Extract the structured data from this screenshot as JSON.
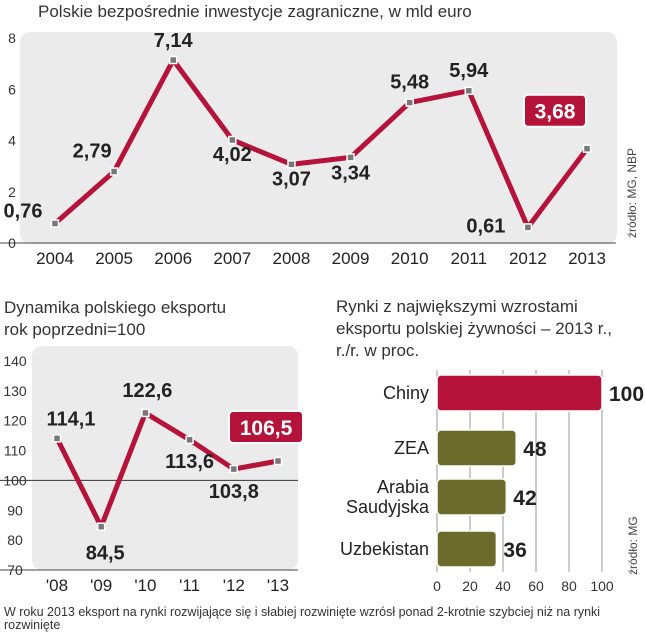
{
  "chart_data": [
    {
      "type": "line",
      "title": "Polskie bezpośrednie inwestycje zagraniczne, w mld euro",
      "source": "źródło: MG, NBP",
      "categories": [
        "2004",
        "2005",
        "2006",
        "2007",
        "2008",
        "2009",
        "2010",
        "2011",
        "2012",
        "2013"
      ],
      "values": [
        0.76,
        2.79,
        7.14,
        4.02,
        3.07,
        3.34,
        5.48,
        5.94,
        0.61,
        3.68
      ],
      "value_labels": [
        "0,76",
        "2,79",
        "7,14",
        "4,02",
        "3,07",
        "3,34",
        "5,48",
        "5,94",
        "0,61",
        "3,68"
      ],
      "highlight_index": 9,
      "yticks": [
        "0",
        "2",
        "4",
        "6",
        "8"
      ],
      "ylim": [
        0,
        8
      ],
      "line_color": "#b5133a",
      "bg_color": "#ebebeb"
    },
    {
      "type": "line",
      "title_lines": [
        "Dynamika polskiego eksportu",
        "rok poprzedni=100"
      ],
      "categories": [
        "'08",
        "'09",
        "'10",
        "'11",
        "'12",
        "'13"
      ],
      "values": [
        114.1,
        84.5,
        122.6,
        113.6,
        103.8,
        106.5
      ],
      "value_labels": [
        "114,1",
        "84,5",
        "122,6",
        "113,6",
        "103,8",
        "106,5"
      ],
      "highlight_index": 5,
      "yticks": [
        "70",
        "80",
        "90",
        "100",
        "110",
        "120",
        "130",
        "140"
      ],
      "ylim": [
        70,
        140
      ],
      "reference_line": 100,
      "line_color": "#b5133a",
      "bg_color": "#ebebeb"
    },
    {
      "type": "bar",
      "orientation": "horizontal",
      "title_lines": [
        "Rynki z największymi wzrostami",
        "eksportu polskiej żywności – 2013 r.,",
        "r./r. w proc."
      ],
      "source": "źródło: MG",
      "categories": [
        [
          "Chiny"
        ],
        [
          "ZEA"
        ],
        [
          "Arabia",
          "Saudyjska"
        ],
        [
          "Uzbekistan"
        ]
      ],
      "values": [
        100,
        48,
        42,
        36
      ],
      "value_labels": [
        "100",
        "48",
        "42",
        "36"
      ],
      "bar_colors": [
        "#b5133a",
        "#6b6b2c",
        "#6b6b2c",
        "#6b6b2c"
      ],
      "xticks": [
        "0",
        "20",
        "40",
        "60",
        "80",
        "100"
      ],
      "xlim": [
        0,
        100
      ]
    }
  ],
  "footnote": "W roku 2013 eksport na rynki rozwijające się i słabiej rozwinięte wzrósł ponad 2-krotnie szybciej niż na rynki rozwinięte"
}
